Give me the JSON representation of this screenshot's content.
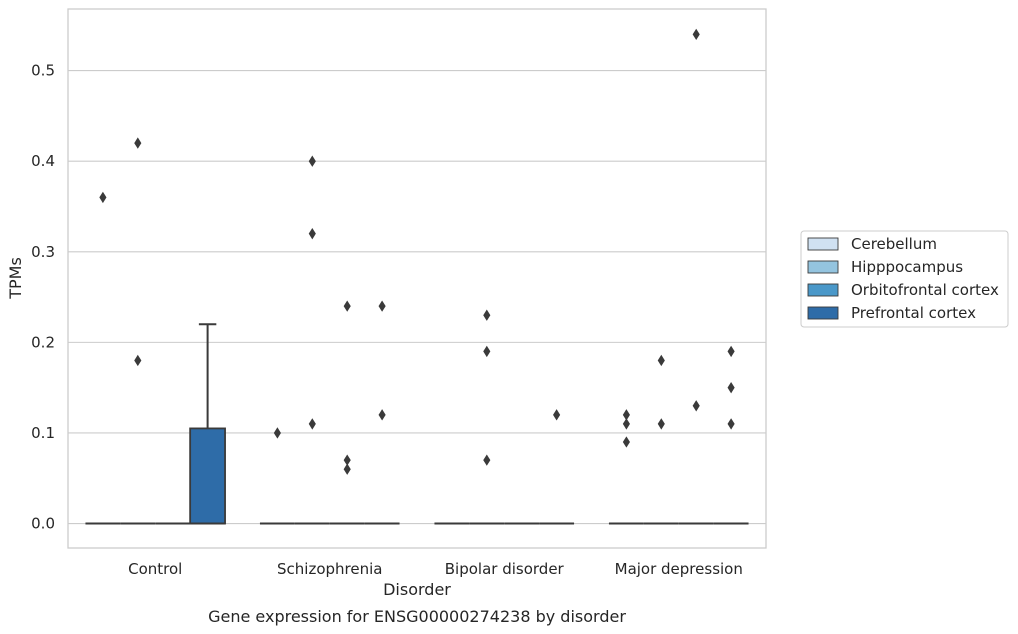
{
  "chart_data": {
    "type": "box",
    "caption": "Gene expression for ENSG00000274238 by disorder",
    "xlabel": "Disorder",
    "ylabel": "TPMs",
    "ylim": [
      -0.027,
      0.568
    ],
    "yticks": [
      "0.0",
      "0.1",
      "0.2",
      "0.3",
      "0.4",
      "0.5"
    ],
    "grid": "horizontal",
    "legend_placement": "right",
    "categories": [
      "Control",
      "Schizophrenia",
      "Bipolar disorder",
      "Major depression"
    ],
    "series": [
      {
        "name": "Cerebellum",
        "color": "#d0e1f2",
        "boxes": [
          {
            "q1": 0,
            "median": 0,
            "q3": 0,
            "whisker_low": 0,
            "whisker_high": 0,
            "outliers": [
              0.36
            ]
          },
          {
            "q1": 0,
            "median": 0,
            "q3": 0,
            "whisker_low": 0,
            "whisker_high": 0,
            "outliers": [
              0.1
            ]
          },
          {
            "q1": 0,
            "median": 0,
            "q3": 0,
            "whisker_low": 0,
            "whisker_high": 0,
            "outliers": []
          },
          {
            "q1": 0,
            "median": 0,
            "q3": 0,
            "whisker_low": 0,
            "whisker_high": 0,
            "outliers": [
              0.12,
              0.11,
              0.09
            ]
          }
        ]
      },
      {
        "name": "Hipppocampus",
        "color": "#94c4df",
        "boxes": [
          {
            "q1": 0,
            "median": 0,
            "q3": 0,
            "whisker_low": 0,
            "whisker_high": 0,
            "outliers": [
              0.42,
              0.18
            ]
          },
          {
            "q1": 0,
            "median": 0,
            "q3": 0,
            "whisker_low": 0,
            "whisker_high": 0,
            "outliers": [
              0.4,
              0.32,
              0.11
            ]
          },
          {
            "q1": 0,
            "median": 0,
            "q3": 0,
            "whisker_low": 0,
            "whisker_high": 0,
            "outliers": [
              0.23,
              0.19,
              0.07
            ]
          },
          {
            "q1": 0,
            "median": 0,
            "q3": 0,
            "whisker_low": 0,
            "whisker_high": 0,
            "outliers": [
              0.18,
              0.11
            ]
          }
        ]
      },
      {
        "name": "Orbitofrontal cortex",
        "color": "#4a98c9",
        "boxes": [
          {
            "q1": 0,
            "median": 0,
            "q3": 0,
            "whisker_low": 0,
            "whisker_high": 0,
            "outliers": []
          },
          {
            "q1": 0,
            "median": 0,
            "q3": 0,
            "whisker_low": 0,
            "whisker_high": 0,
            "outliers": [
              0.24,
              0.07,
              0.06
            ]
          },
          {
            "q1": 0,
            "median": 0,
            "q3": 0,
            "whisker_low": 0,
            "whisker_high": 0,
            "outliers": []
          },
          {
            "q1": 0,
            "median": 0,
            "q3": 0,
            "whisker_low": 0,
            "whisker_high": 0,
            "outliers": [
              0.54,
              0.13
            ]
          }
        ]
      },
      {
        "name": "Prefrontal cortex",
        "color": "#2e6ca8",
        "boxes": [
          {
            "q1": 0,
            "median": 0,
            "q3": 0.105,
            "whisker_low": 0,
            "whisker_high": 0.22,
            "outliers": []
          },
          {
            "q1": 0,
            "median": 0,
            "q3": 0,
            "whisker_low": 0,
            "whisker_high": 0,
            "outliers": [
              0.24,
              0.12
            ]
          },
          {
            "q1": 0,
            "median": 0,
            "q3": 0,
            "whisker_low": 0,
            "whisker_high": 0,
            "outliers": [
              0.12
            ]
          },
          {
            "q1": 0,
            "median": 0,
            "q3": 0,
            "whisker_low": 0,
            "whisker_high": 0,
            "outliers": [
              0.19,
              0.15,
              0.11
            ]
          }
        ]
      }
    ]
  }
}
